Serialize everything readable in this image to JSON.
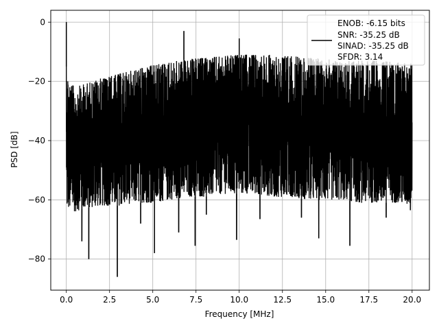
{
  "chart_data": {
    "type": "line",
    "title": "",
    "xlabel": "Frequency [MHz]",
    "ylabel": "PSD [dB]",
    "xlim": [
      -0.9,
      21.0
    ],
    "ylim": [
      -90.5,
      4.0
    ],
    "xticks": [
      0.0,
      2.5,
      5.0,
      7.5,
      10.0,
      12.5,
      15.0,
      17.5,
      20.0
    ],
    "xtick_labels": [
      "0.0",
      "2.5",
      "5.0",
      "7.5",
      "10.0",
      "12.5",
      "15.0",
      "17.5",
      "20.0"
    ],
    "yticks": [
      0,
      -20,
      -40,
      -60,
      -80
    ],
    "ytick_labels": [
      "0",
      "−20",
      "−40",
      "−60",
      "−80"
    ],
    "grid": true,
    "legend": {
      "placement": "top-right",
      "lines": [
        "ENOB: -6.15 bits",
        "SNR: -35.25 dB",
        "SINAD: -35.25 dB",
        "SFDR: 3.14"
      ]
    },
    "series": [
      {
        "color": "#000000",
        "description_noise": "dense noise floor approx -20 to -60 dB across 0-20 MHz",
        "upper_envelope": {
          "x": [
            0.0,
            0.15,
            0.5,
            1.0,
            2.0,
            3.0,
            4.0,
            5.0,
            6.0,
            7.0,
            8.0,
            9.0,
            10.0,
            11.0,
            12.0,
            13.0,
            14.0,
            15.0,
            16.0,
            17.0,
            18.0,
            19.0,
            20.0
          ],
          "y": [
            -15,
            -20,
            -22,
            -21,
            -19,
            -17.5,
            -16,
            -14.5,
            -13.5,
            -12.5,
            -12,
            -11.5,
            -11,
            -11,
            -11,
            -11.5,
            -12,
            -12.5,
            -13,
            -13,
            -13,
            -13.5,
            -14
          ]
        },
        "lower_envelope": {
          "x": [
            0.0,
            0.5,
            1.0,
            2.0,
            3.0,
            4.0,
            5.0,
            6.0,
            7.0,
            8.0,
            9.0,
            10.0,
            11.0,
            12.0,
            13.0,
            14.0,
            15.0,
            16.0,
            17.0,
            18.0,
            19.0,
            20.0
          ],
          "y": [
            -63,
            -64,
            -63,
            -62,
            -62,
            -61,
            -61,
            -60,
            -59,
            -59,
            -58,
            -58,
            -58,
            -59,
            -59,
            -60,
            -60,
            -60,
            -61,
            -61,
            -61,
            -62
          ]
        },
        "spikes": [
          {
            "x": 0.0,
            "y": 0.0
          },
          {
            "x": 6.8,
            "y": -3.0
          },
          {
            "x": 10.0,
            "y": -5.5
          },
          {
            "x": 1.3,
            "y": -80.0
          },
          {
            "x": 2.95,
            "y": -86.0
          },
          {
            "x": 5.1,
            "y": -78.0
          },
          {
            "x": 0.9,
            "y": -74.0
          },
          {
            "x": 6.5,
            "y": -71.0
          },
          {
            "x": 7.45,
            "y": -75.5
          },
          {
            "x": 9.85,
            "y": -73.5
          },
          {
            "x": 14.6,
            "y": -73.0
          },
          {
            "x": 16.4,
            "y": -75.5
          },
          {
            "x": 13.6,
            "y": -66.0
          },
          {
            "x": 4.3,
            "y": -68.0
          },
          {
            "x": 8.1,
            "y": -65.0
          },
          {
            "x": 11.2,
            "y": -66.5
          },
          {
            "x": 18.5,
            "y": -66.0
          },
          {
            "x": 19.9,
            "y": -63.5
          }
        ]
      }
    ]
  }
}
